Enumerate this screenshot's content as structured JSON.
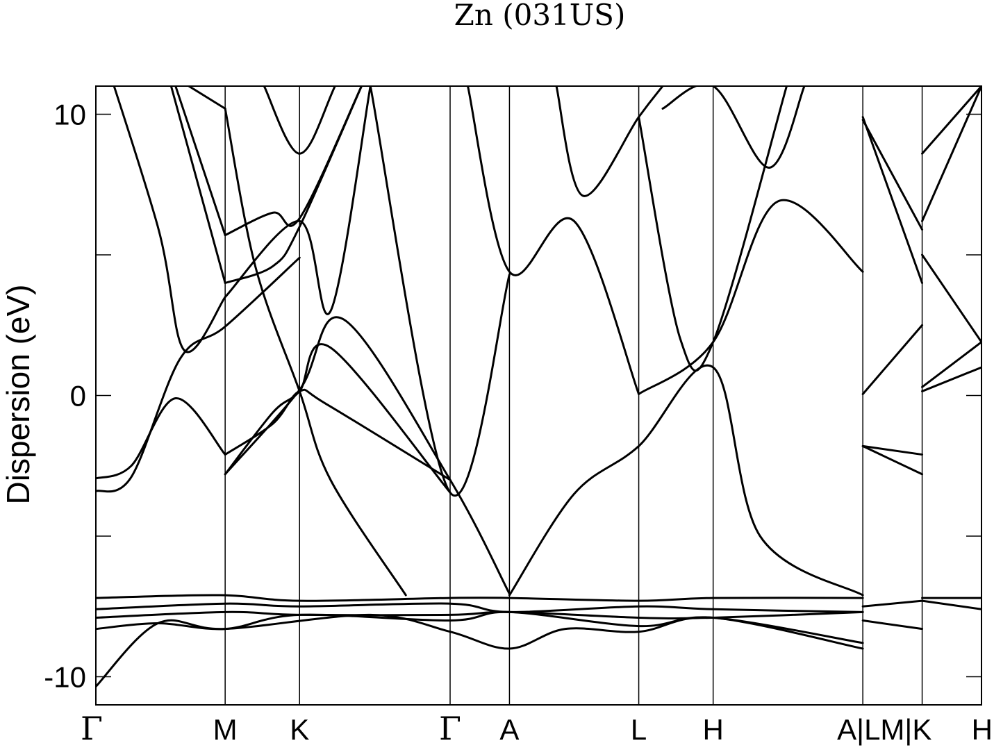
{
  "chart_data": {
    "type": "line",
    "title": "Zn (031US)",
    "xlabel": "",
    "ylabel": "Dispersion (eV)",
    "ylim": [
      -11.0,
      11.0
    ],
    "xlim": [
      0,
      1
    ],
    "grid": false,
    "yticks": [
      {
        "value": 10,
        "label": "10"
      },
      {
        "value": 5,
        "label": ""
      },
      {
        "value": 0,
        "label": "0"
      },
      {
        "value": -5,
        "label": ""
      },
      {
        "value": -10,
        "label": "-10"
      }
    ],
    "kpoints": [
      {
        "pos": 0.0,
        "label": "Γ"
      },
      {
        "pos": 0.146,
        "label": "M"
      },
      {
        "pos": 0.23,
        "label": "K"
      },
      {
        "pos": 0.4,
        "label": "Γ"
      },
      {
        "pos": 0.467,
        "label": "A"
      },
      {
        "pos": 0.613,
        "label": "L"
      },
      {
        "pos": 0.697,
        "label": "H"
      },
      {
        "pos": 0.866,
        "label": "A|LM|K"
      },
      {
        "pos": 0.933,
        "label": ""
      },
      {
        "pos": 1.0,
        "label": "H"
      }
    ],
    "series": [
      {
        "x": [
          0.0,
          0.04,
          0.09,
          0.146
        ],
        "y": [
          -2.95,
          -2.5,
          -0.1,
          -2.1
        ]
      },
      {
        "x": [
          0.0,
          0.04,
          0.095,
          0.146,
          0.23
        ],
        "y": [
          -3.4,
          -2.9,
          1.3,
          2.45,
          4.9
        ]
      },
      {
        "x": [
          0.146,
          0.2,
          0.23,
          0.26,
          0.4
        ],
        "y": [
          -2.1,
          -1.0,
          0.15,
          -0.3,
          -3.0
        ]
      },
      {
        "x": [
          0.146,
          0.2,
          0.23,
          0.265,
          0.4
        ],
        "y": [
          -2.8,
          -0.6,
          0.15,
          1.7,
          -3.45
        ]
      },
      {
        "x": [
          0.146,
          0.23,
          0.28,
          0.4,
          0.467
        ],
        "y": [
          -2.8,
          0.2,
          2.7,
          -3.0,
          -7.05
        ]
      },
      {
        "x": [
          0.0,
          0.07,
          0.1,
          0.146
        ],
        "y": [
          13.0,
          6.0,
          1.6,
          3.5
        ]
      },
      {
        "x": [
          0.146,
          0.23,
          0.265,
          0.31
        ],
        "y": [
          3.5,
          6.2,
          3.0,
          11.0
        ]
      },
      {
        "x": [
          0.146,
          0.2,
          0.23,
          0.3
        ],
        "y": [
          4.0,
          4.6,
          6.0,
          11.0
        ]
      },
      {
        "x": [
          0.146,
          0.2,
          0.23,
          0.3
        ],
        "y": [
          5.7,
          6.5,
          6.3,
          11.0
        ]
      },
      {
        "x": [
          0.146,
          0.18,
          0.23,
          0.265,
          0.35
        ],
        "y": [
          10.2,
          4.6,
          0.15,
          -3.0,
          -7.1
        ]
      },
      {
        "x": [
          0.09,
          0.146
        ],
        "y": [
          11.0,
          5.7
        ]
      },
      {
        "x": [
          0.085,
          0.146
        ],
        "y": [
          11.0,
          4.0
        ]
      },
      {
        "x": [
          0.19,
          0.23,
          0.27,
          0.31
        ],
        "y": [
          11.0,
          8.6,
          11.0,
          14.0
        ]
      },
      {
        "x": [
          0.105,
          0.146
        ],
        "y": [
          11.0,
          10.2
        ]
      },
      {
        "x": [
          0.31,
          0.4,
          0.467
        ],
        "y": [
          11.0,
          -3.45,
          4.3
        ]
      },
      {
        "x": [
          0.42,
          0.467,
          0.54,
          0.613
        ],
        "y": [
          11.0,
          4.4,
          6.2,
          0.05
        ]
      },
      {
        "x": [
          0.52,
          0.55,
          0.613,
          0.64
        ],
        "y": [
          11.0,
          7.1,
          9.9,
          11.0
        ]
      },
      {
        "x": [
          0.613,
          0.697,
          0.77,
          0.866
        ],
        "y": [
          0.05,
          1.9,
          6.9,
          4.4
        ]
      },
      {
        "x": [
          0.613,
          0.66,
          0.697,
          0.78
        ],
        "y": [
          9.9,
          2.0,
          1.9,
          11.0
        ]
      },
      {
        "x": [
          0.64,
          0.697,
          0.76,
          0.8
        ],
        "y": [
          10.2,
          11.0,
          8.1,
          11.0
        ]
      },
      {
        "x": [
          0.467,
          0.54,
          0.613,
          0.697,
          0.75,
          0.866
        ],
        "y": [
          -7.1,
          -3.5,
          -1.8,
          1.0,
          -5.0,
          -7.1
        ]
      },
      {
        "x": [
          0.0,
          0.14,
          0.23,
          0.4,
          0.467,
          0.613,
          0.697,
          0.866
        ],
        "y": [
          -7.2,
          -7.1,
          -7.3,
          -7.2,
          -7.2,
          -7.3,
          -7.2,
          -7.2
        ]
      },
      {
        "x": [
          0.0,
          0.146,
          0.23,
          0.4,
          0.467,
          0.613,
          0.697,
          0.866
        ],
        "y": [
          -7.6,
          -7.4,
          -7.5,
          -7.4,
          -7.7,
          -7.5,
          -7.6,
          -7.7
        ]
      },
      {
        "x": [
          0.0,
          0.146,
          0.23,
          0.4,
          0.467,
          0.613,
          0.697,
          0.866
        ],
        "y": [
          -7.9,
          -7.7,
          -7.8,
          -7.8,
          -7.7,
          -7.9,
          -7.9,
          -7.7
        ]
      },
      {
        "x": [
          0.0,
          0.07,
          0.146,
          0.23,
          0.4,
          0.467,
          0.613,
          0.697,
          0.866
        ],
        "y": [
          -8.3,
          -8.1,
          -8.3,
          -7.8,
          -8.0,
          -7.7,
          -8.2,
          -7.9,
          -8.8
        ]
      },
      {
        "x": [
          0.0,
          0.07,
          0.146,
          0.31,
          0.4,
          0.467,
          0.53,
          0.613,
          0.697,
          0.866
        ],
        "y": [
          -10.35,
          -8.1,
          -8.3,
          -7.8,
          -8.4,
          -9.0,
          -8.3,
          -8.4,
          -7.9,
          -9.0
        ]
      },
      {
        "x": [
          0.866,
          0.933
        ],
        "y": [
          -1.8,
          -2.1
        ]
      },
      {
        "x": [
          0.866,
          0.933
        ],
        "y": [
          -1.8,
          -2.8
        ]
      },
      {
        "x": [
          0.866,
          0.933
        ],
        "y": [
          0.05,
          2.5
        ]
      },
      {
        "x": [
          0.866,
          0.933
        ],
        "y": [
          9.8,
          5.9
        ]
      },
      {
        "x": [
          0.866,
          0.933
        ],
        "y": [
          9.9,
          4.0
        ]
      },
      {
        "x": [
          0.866,
          0.933
        ],
        "y": [
          -8.0,
          -8.3
        ]
      },
      {
        "x": [
          0.866,
          0.933
        ],
        "y": [
          -7.5,
          -7.3
        ]
      },
      {
        "x": [
          0.933,
          1.0
        ],
        "y": [
          0.15,
          1.0
        ]
      },
      {
        "x": [
          0.933,
          1.0
        ],
        "y": [
          0.3,
          1.9
        ]
      },
      {
        "x": [
          0.933,
          1.0
        ],
        "y": [
          5.0,
          1.9
        ]
      },
      {
        "x": [
          0.933,
          1.0
        ],
        "y": [
          6.2,
          11.0
        ]
      },
      {
        "x": [
          0.933,
          1.0
        ],
        "y": [
          8.6,
          11.0
        ]
      },
      {
        "x": [
          0.933,
          1.0
        ],
        "y": [
          -7.3,
          -7.6
        ]
      },
      {
        "x": [
          0.933,
          1.0
        ],
        "y": [
          -7.2,
          -7.2
        ]
      }
    ]
  }
}
